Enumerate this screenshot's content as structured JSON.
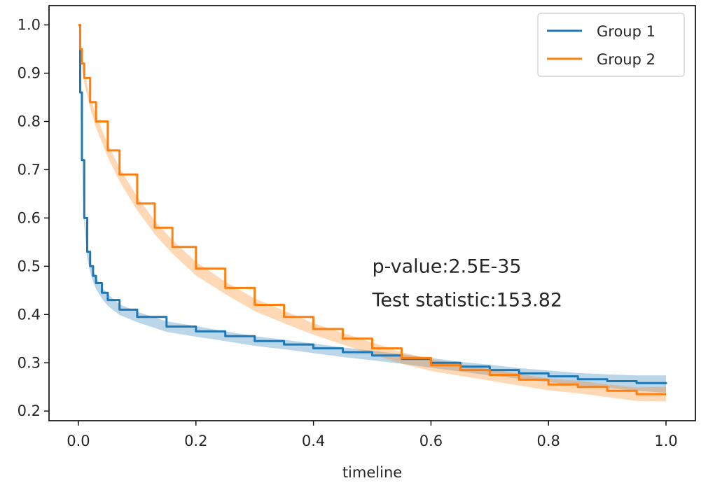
{
  "chart_data": {
    "type": "line",
    "title": "",
    "xlabel": "timeline",
    "ylabel": "",
    "xlim": [
      -0.05,
      1.05
    ],
    "ylim": [
      0.18,
      1.04
    ],
    "xticks": [
      0.0,
      0.2,
      0.4,
      0.6,
      0.8,
      1.0
    ],
    "xtick_labels": [
      "0.0",
      "0.2",
      "0.4",
      "0.6",
      "0.8",
      "1.0"
    ],
    "yticks": [
      0.2,
      0.3,
      0.4,
      0.5,
      0.6,
      0.7,
      0.8,
      0.9,
      1.0
    ],
    "ytick_labels": [
      "0.2",
      "0.3",
      "0.4",
      "0.5",
      "0.6",
      "0.7",
      "0.8",
      "0.9",
      "1.0"
    ],
    "grid": false,
    "legend_position": "top-right",
    "series": [
      {
        "name": "Group 1",
        "color": "#1f77b4",
        "ci_color": "#1f77b4",
        "x": [
          0.0,
          0.003,
          0.006,
          0.01,
          0.015,
          0.02,
          0.025,
          0.03,
          0.04,
          0.05,
          0.07,
          0.1,
          0.15,
          0.2,
          0.25,
          0.3,
          0.35,
          0.4,
          0.45,
          0.5,
          0.55,
          0.6,
          0.65,
          0.7,
          0.75,
          0.8,
          0.85,
          0.9,
          0.95,
          1.0
        ],
        "y": [
          1.0,
          0.86,
          0.72,
          0.6,
          0.53,
          0.5,
          0.48,
          0.465,
          0.445,
          0.43,
          0.41,
          0.395,
          0.375,
          0.365,
          0.355,
          0.345,
          0.338,
          0.33,
          0.322,
          0.315,
          0.308,
          0.3,
          0.292,
          0.285,
          0.278,
          0.272,
          0.266,
          0.262,
          0.258,
          0.256
        ],
        "ci_halfwidth": [
          0.0,
          0.012,
          0.013,
          0.013,
          0.013,
          0.012,
          0.012,
          0.012,
          0.012,
          0.012,
          0.011,
          0.011,
          0.011,
          0.011,
          0.01,
          0.01,
          0.01,
          0.01,
          0.01,
          0.01,
          0.01,
          0.01,
          0.01,
          0.011,
          0.011,
          0.012,
          0.013,
          0.014,
          0.016,
          0.018
        ]
      },
      {
        "name": "Group 2",
        "color": "#ff7f0e",
        "ci_color": "#ff7f0e",
        "x": [
          0.0,
          0.003,
          0.006,
          0.01,
          0.02,
          0.03,
          0.05,
          0.07,
          0.1,
          0.13,
          0.16,
          0.2,
          0.25,
          0.3,
          0.35,
          0.4,
          0.45,
          0.5,
          0.55,
          0.6,
          0.65,
          0.7,
          0.75,
          0.8,
          0.85,
          0.9,
          0.95,
          1.0
        ],
        "y": [
          1.0,
          0.95,
          0.92,
          0.89,
          0.84,
          0.8,
          0.74,
          0.69,
          0.63,
          0.58,
          0.54,
          0.495,
          0.455,
          0.42,
          0.395,
          0.37,
          0.35,
          0.33,
          0.31,
          0.295,
          0.285,
          0.275,
          0.265,
          0.255,
          0.25,
          0.242,
          0.235,
          0.235
        ],
        "ci_halfwidth": [
          0.0,
          0.006,
          0.008,
          0.01,
          0.012,
          0.013,
          0.014,
          0.014,
          0.014,
          0.014,
          0.014,
          0.014,
          0.013,
          0.013,
          0.013,
          0.012,
          0.012,
          0.012,
          0.012,
          0.012,
          0.012,
          0.012,
          0.012,
          0.012,
          0.013,
          0.013,
          0.014,
          0.015
        ]
      }
    ],
    "annotations": [
      {
        "text": "p-value:2.5E-35",
        "x": 0.5,
        "y": 0.5
      },
      {
        "text": "Test statistic:153.82",
        "x": 0.5,
        "y": 0.43
      }
    ]
  }
}
